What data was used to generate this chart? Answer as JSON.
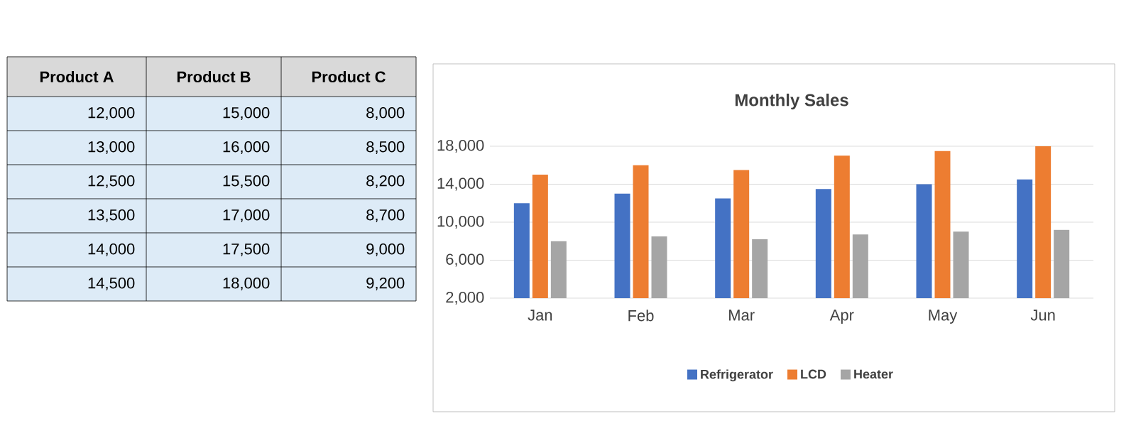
{
  "chart_data": {
    "type": "bar",
    "title": "Monthly Sales",
    "categories": [
      "Jan",
      "Feb",
      "Mar",
      "Apr",
      "May",
      "Jun"
    ],
    "series": [
      {
        "name": "Refrigerator",
        "color": "#4472c4",
        "values": [
          12000,
          13000,
          12500,
          13500,
          14000,
          14500
        ]
      },
      {
        "name": "LCD",
        "color": "#ed7d31",
        "values": [
          15000,
          16000,
          15500,
          17000,
          17500,
          18000
        ]
      },
      {
        "name": "Heater",
        "color": "#a5a5a5",
        "values": [
          8000,
          8500,
          8200,
          8700,
          9000,
          9200
        ]
      }
    ],
    "annotations": [
      "Product A",
      "Product B",
      "Product C",
      "12,000",
      "13,000",
      "12,500",
      "13,500",
      "14,000",
      "14,500",
      "15,000",
      "16,000",
      "15,500",
      "17,000",
      "17,500",
      "18,000",
      "8,000",
      "8,500",
      "8,200",
      "8,700",
      "9,000",
      "9,200"
    ],
    "ylim": [
      2000,
      18000
    ],
    "yticks": [
      {
        "value": 2000,
        "label": "2,000"
      },
      {
        "value": 6000,
        "label": "6,000"
      },
      {
        "value": 10000,
        "label": "10,000"
      },
      {
        "value": 14000,
        "label": "14,000"
      },
      {
        "value": 18000,
        "label": "18,000"
      }
    ],
    "grid": "y",
    "legend": "bottom"
  }
}
